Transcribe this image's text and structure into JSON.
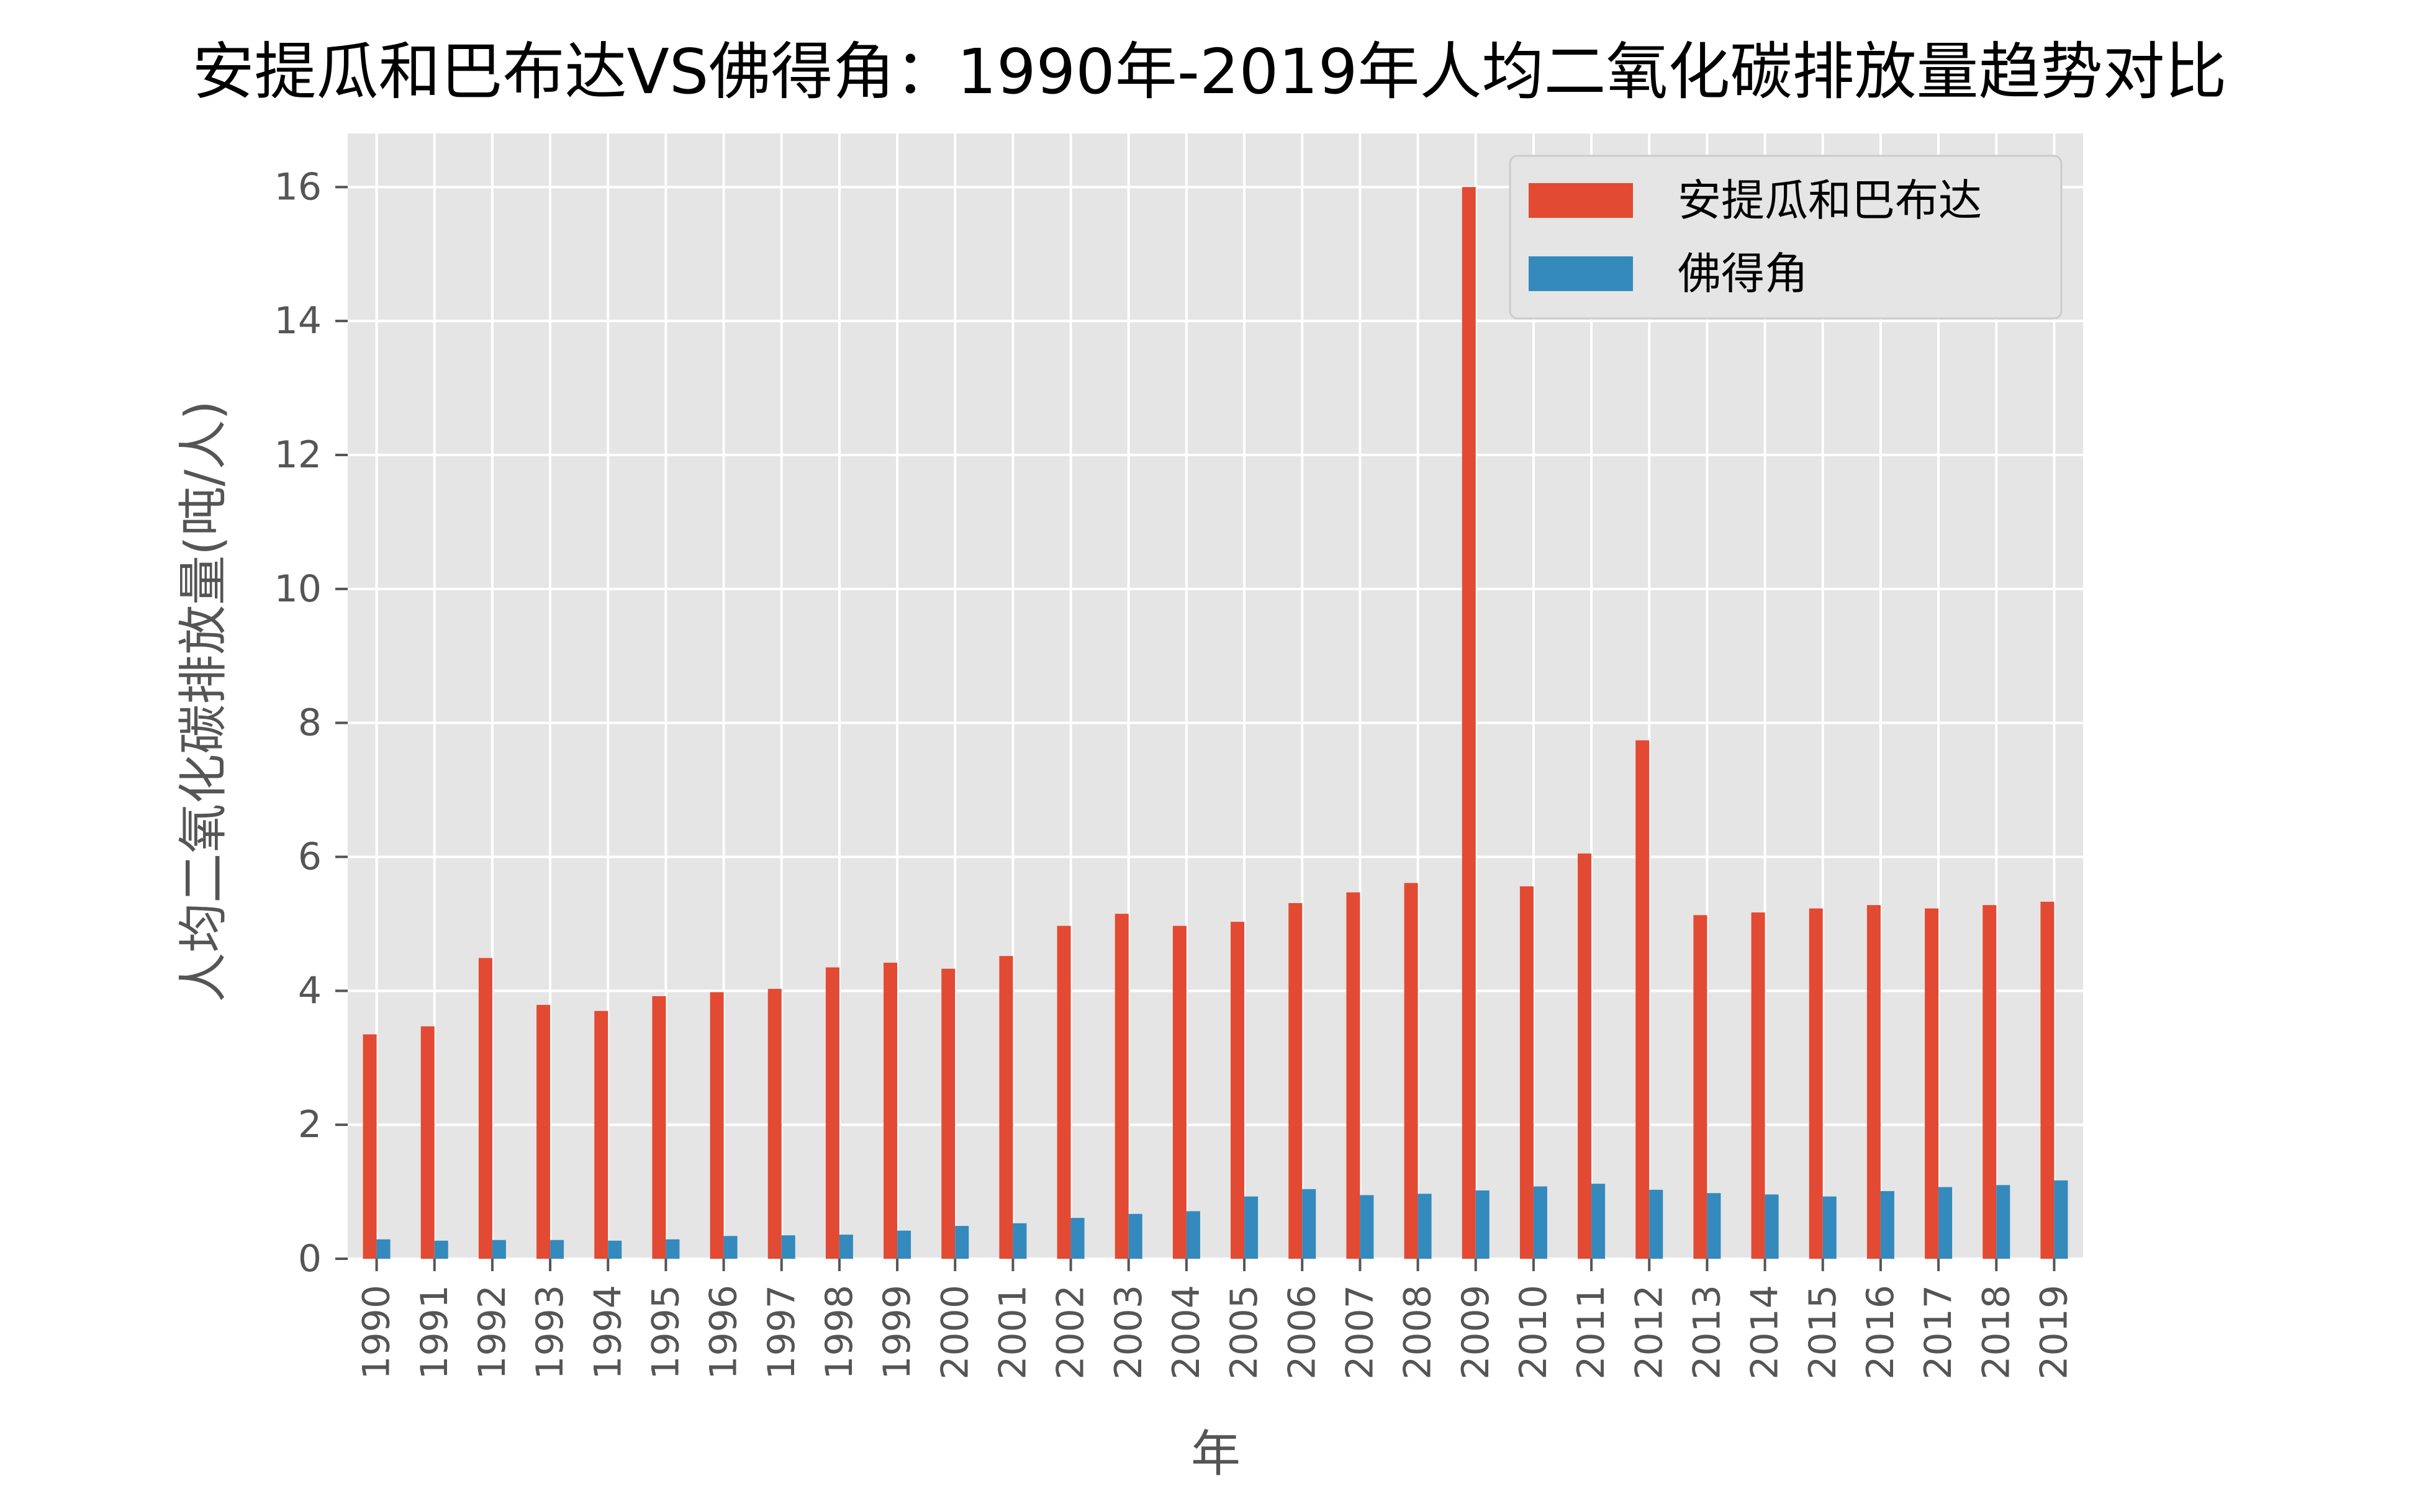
{
  "chart_data": {
    "type": "bar",
    "title": "安提瓜和巴布达VS佛得角：1990年-2019年人均二氧化碳排放量趋势对比",
    "xlabel": "年",
    "ylabel": "人均二氧化碳排放量(吨/人)",
    "categories": [
      "1990",
      "1991",
      "1992",
      "1993",
      "1994",
      "1995",
      "1996",
      "1997",
      "1998",
      "1999",
      "2000",
      "2001",
      "2002",
      "2003",
      "2004",
      "2005",
      "2006",
      "2007",
      "2008",
      "2009",
      "2010",
      "2011",
      "2012",
      "2013",
      "2014",
      "2015",
      "2016",
      "2017",
      "2018",
      "2019"
    ],
    "series": [
      {
        "name": "安提瓜和巴布达",
        "color": "#E24A33",
        "values": [
          3.35,
          3.47,
          4.49,
          3.79,
          3.7,
          3.92,
          3.98,
          4.03,
          4.35,
          4.42,
          4.33,
          4.52,
          4.97,
          5.15,
          4.97,
          5.03,
          5.31,
          5.47,
          5.61,
          16.0,
          5.56,
          6.05,
          7.74,
          5.13,
          5.17,
          5.23,
          5.28,
          5.23,
          5.28,
          5.33
        ]
      },
      {
        "name": "佛得角",
        "color": "#348ABD",
        "values": [
          0.29,
          0.27,
          0.28,
          0.28,
          0.27,
          0.29,
          0.34,
          0.35,
          0.36,
          0.42,
          0.49,
          0.53,
          0.61,
          0.67,
          0.71,
          0.93,
          1.04,
          0.95,
          0.97,
          1.02,
          1.08,
          1.12,
          1.03,
          0.98,
          0.96,
          0.93,
          1.01,
          1.07,
          1.1,
          1.17
        ]
      }
    ],
    "ylim": [
      0,
      16.8
    ],
    "yticks": [
      0,
      2,
      4,
      6,
      8,
      10,
      12,
      14,
      16
    ],
    "grid": true,
    "legend_position": "top-right",
    "style": {
      "plot_background": "#E5E5E5",
      "grid_color": "#FFFFFF",
      "tick_color": "#555555"
    }
  }
}
